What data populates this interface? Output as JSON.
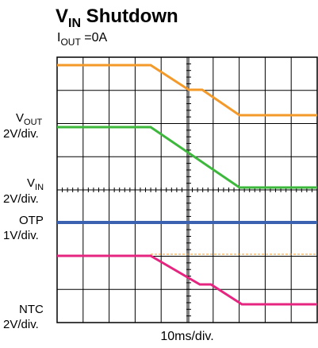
{
  "title": {
    "main": "V",
    "sub": "IN",
    "rest": " Shutdown"
  },
  "subtitle": {
    "main": "I",
    "sub": "OUT",
    "rest": " =0A"
  },
  "channels": [
    {
      "main": "V",
      "sub": "OUT",
      "scale": "2V/div."
    },
    {
      "main": "V",
      "sub": "IN",
      "scale": "2V/div."
    },
    {
      "main": "OTP",
      "scale": "1V/div."
    },
    {
      "main": "NTC",
      "scale": "2V/div."
    }
  ],
  "timebase": "10ms/div."
}
